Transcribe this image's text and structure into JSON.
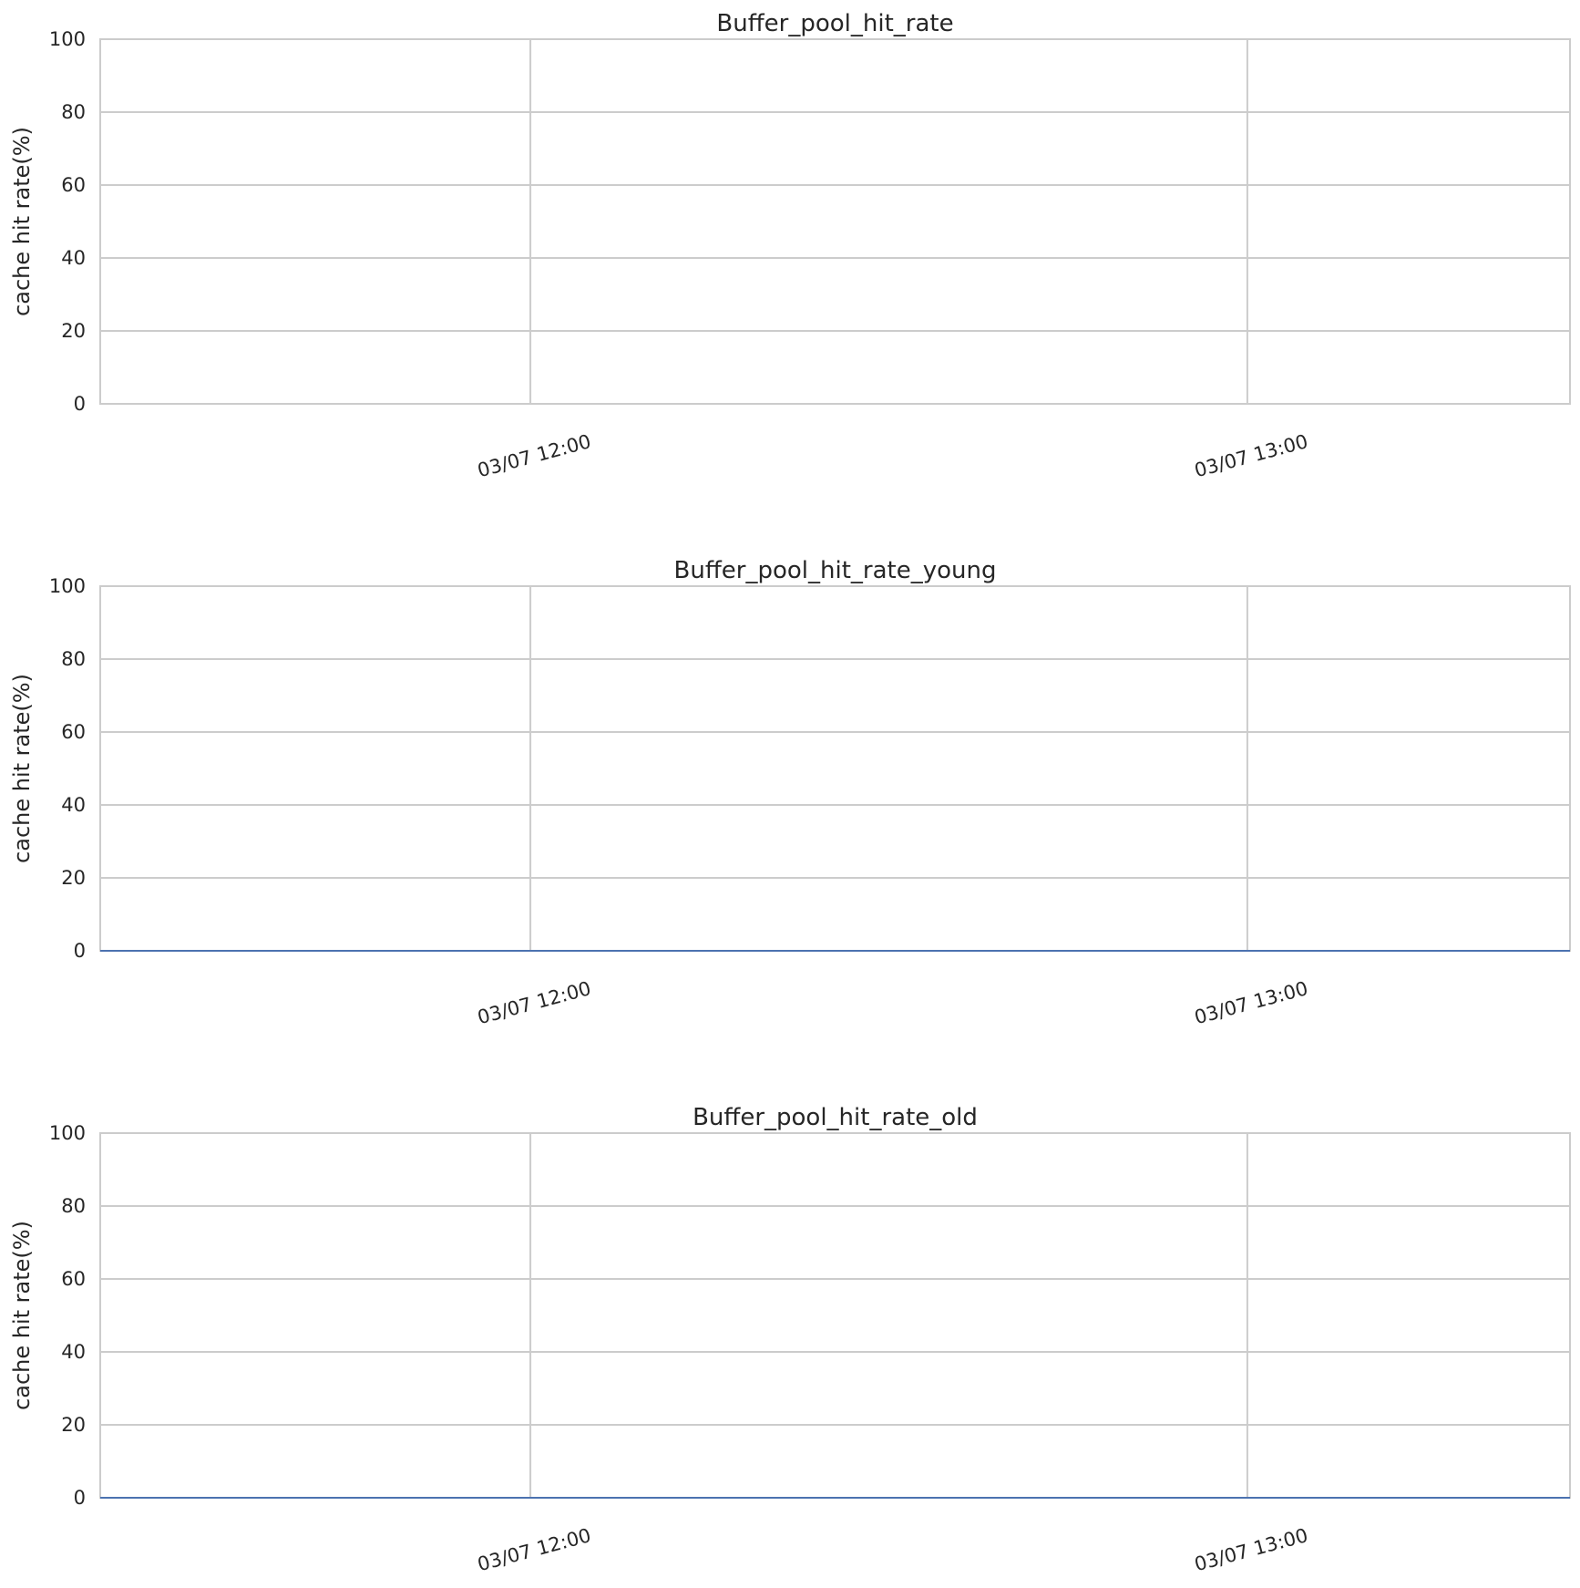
{
  "chart_data": [
    {
      "type": "line",
      "title": "Buffer_pool_hit_rate",
      "ylabel": "cache hit rate(%)",
      "xlabel": "",
      "ylim": [
        0,
        100
      ],
      "yticks": [
        0,
        20,
        40,
        60,
        80,
        100
      ],
      "xlim": [
        "03/07 11:24",
        "03/07 13:27"
      ],
      "xticks": [
        {
          "label": "03/07 12:00",
          "value": "03/07 12:00"
        },
        {
          "label": "03/07 13:00",
          "value": "03/07 13:00"
        }
      ],
      "grid": true,
      "series": []
    },
    {
      "type": "line",
      "title": "Buffer_pool_hit_rate_young",
      "ylabel": "cache hit rate(%)",
      "xlabel": "",
      "ylim": [
        0,
        100
      ],
      "yticks": [
        0,
        20,
        40,
        60,
        80,
        100
      ],
      "xlim": [
        "03/07 11:24",
        "03/07 13:27"
      ],
      "xticks": [
        {
          "label": "03/07 12:00",
          "value": "03/07 12:00"
        },
        {
          "label": "03/07 13:00",
          "value": "03/07 13:00"
        }
      ],
      "grid": true,
      "series": [
        {
          "color": "#4c72b0",
          "x": [
            "03/07 11:24",
            "03/07 13:27"
          ],
          "values": [
            0,
            0
          ]
        }
      ]
    },
    {
      "type": "line",
      "title": "Buffer_pool_hit_rate_old",
      "ylabel": "cache hit rate(%)",
      "xlabel": "",
      "ylim": [
        0,
        100
      ],
      "yticks": [
        0,
        20,
        40,
        60,
        80,
        100
      ],
      "xlim": [
        "03/07 11:24",
        "03/07 13:27"
      ],
      "xticks": [
        {
          "label": "03/07 12:00",
          "value": "03/07 12:00"
        },
        {
          "label": "03/07 13:00",
          "value": "03/07 13:00"
        }
      ],
      "grid": true,
      "series": [
        {
          "color": "#4c72b0",
          "x": [
            "03/07 11:24",
            "03/07 13:27"
          ],
          "values": [
            0,
            0
          ]
        }
      ]
    }
  ]
}
